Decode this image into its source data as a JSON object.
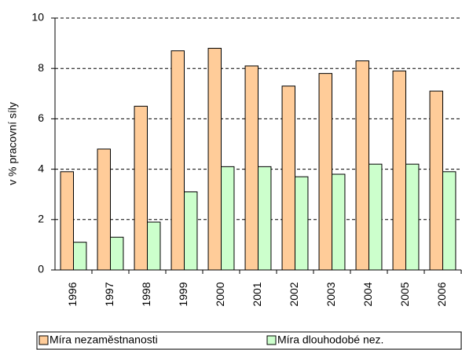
{
  "chart_data": {
    "type": "bar",
    "y_label": "v % pracovní síly",
    "categories": [
      "1996",
      "1997",
      "1998",
      "1999",
      "2000",
      "2001",
      "2002",
      "2003",
      "2004",
      "2005",
      "2006"
    ],
    "series": [
      {
        "name": "Míra nezaměstnanosti",
        "color": "#ffcc99",
        "values": [
          3.9,
          4.8,
          6.5,
          8.7,
          8.8,
          8.1,
          7.3,
          7.8,
          8.3,
          7.9,
          7.1
        ]
      },
      {
        "name": "Míra dlouhodobé nez.",
        "color": "#ccffcc",
        "values": [
          1.1,
          1.3,
          1.9,
          3.1,
          4.1,
          4.1,
          3.7,
          3.8,
          4.2,
          4.2,
          3.9
        ]
      }
    ],
    "ylim": [
      0,
      10
    ],
    "yticks": [
      0,
      2,
      4,
      6,
      8,
      10
    ],
    "grid": true,
    "legend": "bottom"
  }
}
